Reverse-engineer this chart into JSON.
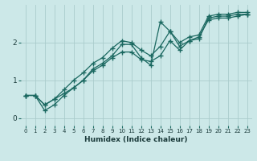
{
  "xlabel": "Humidex (Indice chaleur)",
  "ylabel": "",
  "bg_color": "#cce8e8",
  "grid_color": "#aacccc",
  "line_color": "#1a6860",
  "xlim": [
    -0.5,
    23.5
  ],
  "ylim": [
    -0.2,
    3.0
  ],
  "yticks": [
    0,
    1,
    2
  ],
  "xticks": [
    0,
    1,
    2,
    3,
    4,
    5,
    6,
    7,
    8,
    9,
    10,
    11,
    12,
    13,
    14,
    15,
    16,
    17,
    18,
    19,
    20,
    21,
    22,
    23
  ],
  "series": [
    [
      0.6,
      0.6,
      0.2,
      0.35,
      0.6,
      0.8,
      1.0,
      1.3,
      1.45,
      1.65,
      1.95,
      1.95,
      1.6,
      1.4,
      2.55,
      2.3,
      1.9,
      2.05,
      2.1,
      2.65,
      2.7,
      2.7,
      2.75,
      2.75
    ],
    [
      0.6,
      0.6,
      0.35,
      0.5,
      0.75,
      1.0,
      1.2,
      1.45,
      1.6,
      1.85,
      2.05,
      2.0,
      1.8,
      1.65,
      1.9,
      2.3,
      2.0,
      2.15,
      2.2,
      2.7,
      2.75,
      2.75,
      2.8,
      2.8
    ],
    [
      0.6,
      0.6,
      0.35,
      0.5,
      0.65,
      0.8,
      1.0,
      1.25,
      1.4,
      1.6,
      1.75,
      1.75,
      1.55,
      1.5,
      1.65,
      2.05,
      1.8,
      2.05,
      2.15,
      2.6,
      2.65,
      2.65,
      2.7,
      2.75
    ]
  ]
}
